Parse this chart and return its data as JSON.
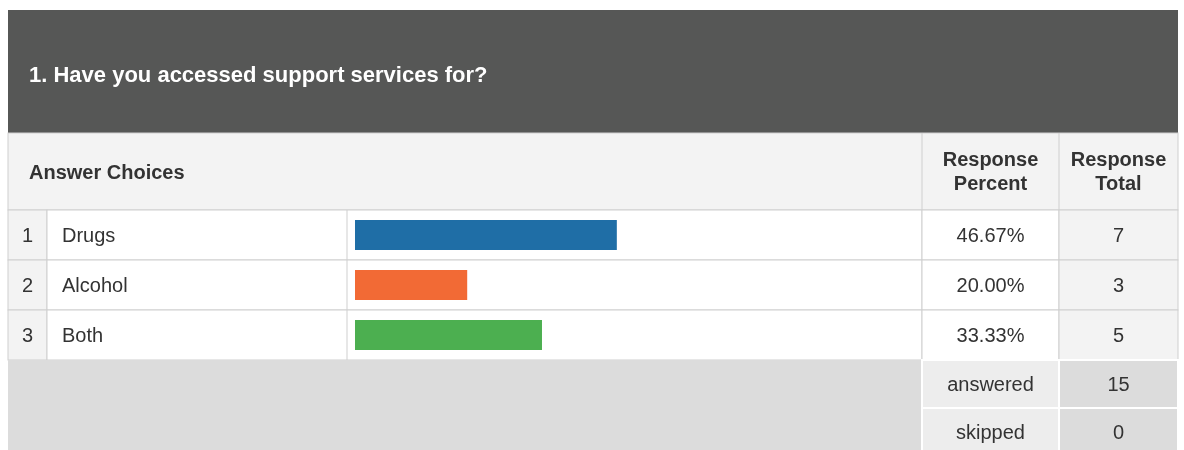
{
  "chart_data": {
    "type": "bar",
    "orientation": "horizontal",
    "title": "1. Have you accessed support services for?",
    "categories": [
      "Drugs",
      "Alcohol",
      "Both"
    ],
    "values": [
      46.67,
      20.0,
      33.33
    ],
    "colors": [
      "#1f6ea6",
      "#f26a35",
      "#4caf50"
    ],
    "value_labels": [
      "46.67%",
      "20.00%",
      "33.33%"
    ],
    "annotations": [
      "Answer Choices",
      "Response Percent",
      "Response Total",
      "answered",
      "15",
      "skipped",
      "0",
      "1",
      "2",
      "3",
      "7",
      "3",
      "5"
    ]
  }
}
